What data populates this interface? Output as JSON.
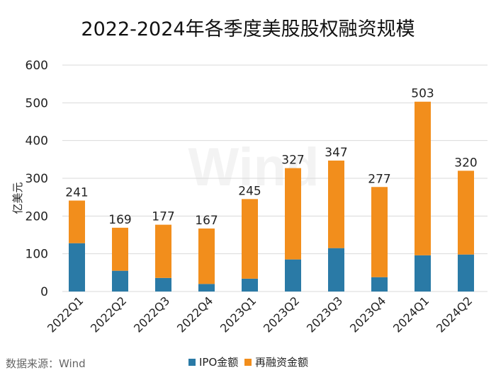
{
  "chart_data": {
    "type": "bar",
    "stacked": true,
    "title": "2022-2024年各季度美股股权融资规模",
    "xlabel": "",
    "ylabel": "亿美元",
    "ylim": [
      0,
      600
    ],
    "yticks": [
      0,
      100,
      200,
      300,
      400,
      500,
      600
    ],
    "categories": [
      "2022Q1",
      "2022Q2",
      "2022Q3",
      "2022Q4",
      "2023Q1",
      "2023Q2",
      "2023Q3",
      "2023Q4",
      "2024Q1",
      "2024Q2"
    ],
    "series": [
      {
        "name": "IPO金额",
        "color": "#2a7aa6",
        "values": [
          128,
          55,
          36,
          20,
          34,
          85,
          115,
          38,
          96,
          98
        ]
      },
      {
        "name": "再融资金额",
        "color": "#f28e1c",
        "values": [
          113,
          114,
          141,
          147,
          211,
          242,
          232,
          239,
          407,
          222
        ]
      }
    ],
    "totals": [
      241,
      169,
      177,
      167,
      245,
      327,
      347,
      277,
      503,
      320
    ],
    "legend": "bottom"
  },
  "source": "数据来源：Wind",
  "watermark": "Wind"
}
